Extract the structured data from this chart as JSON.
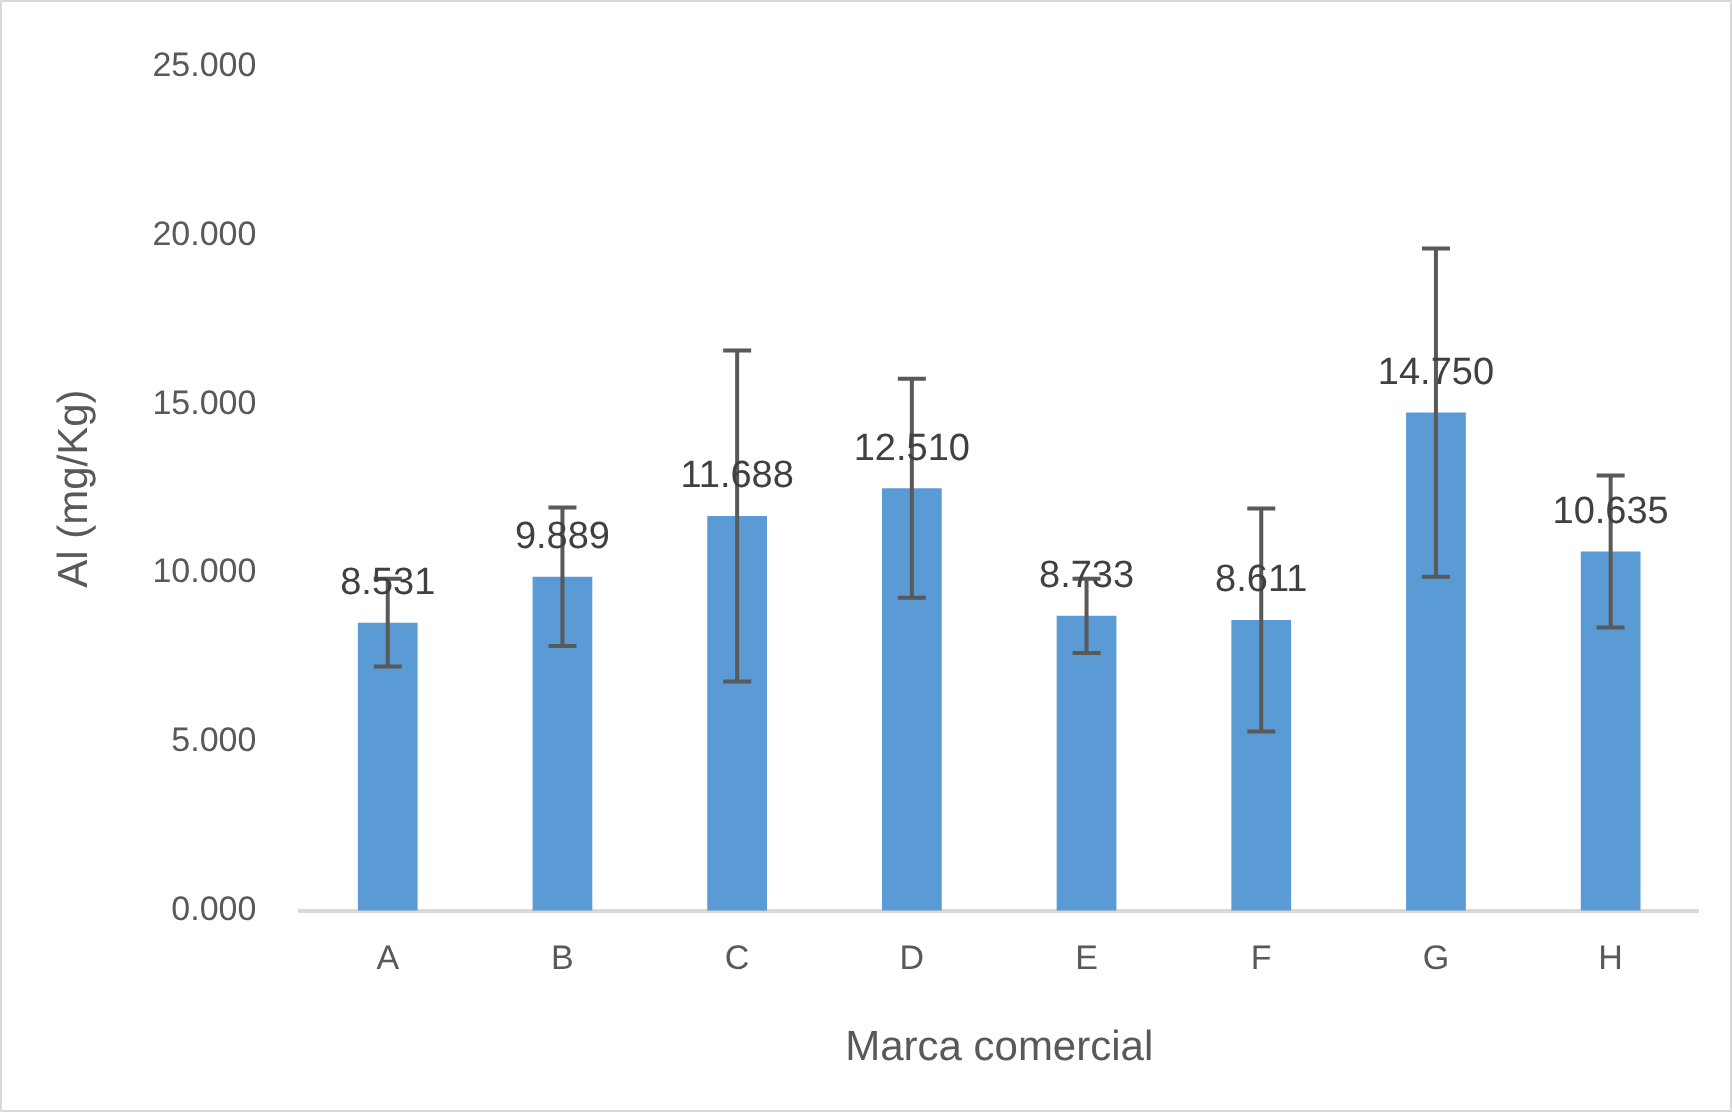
{
  "chart_data": {
    "type": "bar",
    "xlabel": "Marca comercial",
    "ylabel": "Al (mg/Kg)",
    "categories": [
      "A",
      "B",
      "C",
      "D",
      "E",
      "F",
      "G",
      "H"
    ],
    "values": [
      8.531,
      9.889,
      11.688,
      12.51,
      8.733,
      8.611,
      14.75,
      10.635
    ],
    "value_labels": [
      "8.531",
      "9.889",
      "11.688",
      "12.510",
      "8.733",
      "8.611",
      "14.750",
      "10.635"
    ],
    "errors": [
      1.3,
      2.05,
      4.9,
      3.24,
      1.1,
      3.3,
      4.86,
      2.25
    ],
    "color": "#5b9bd5",
    "ylim": [
      0,
      25
    ],
    "yticks": [
      {
        "value": 0,
        "label": "0.000"
      },
      {
        "value": 5,
        "label": "5.000"
      },
      {
        "value": 10,
        "label": "10.000"
      },
      {
        "value": 15,
        "label": "15.000"
      },
      {
        "value": 20,
        "label": "20.000"
      },
      {
        "value": 25,
        "label": "25.000"
      }
    ],
    "grid": false,
    "legend": false
  }
}
